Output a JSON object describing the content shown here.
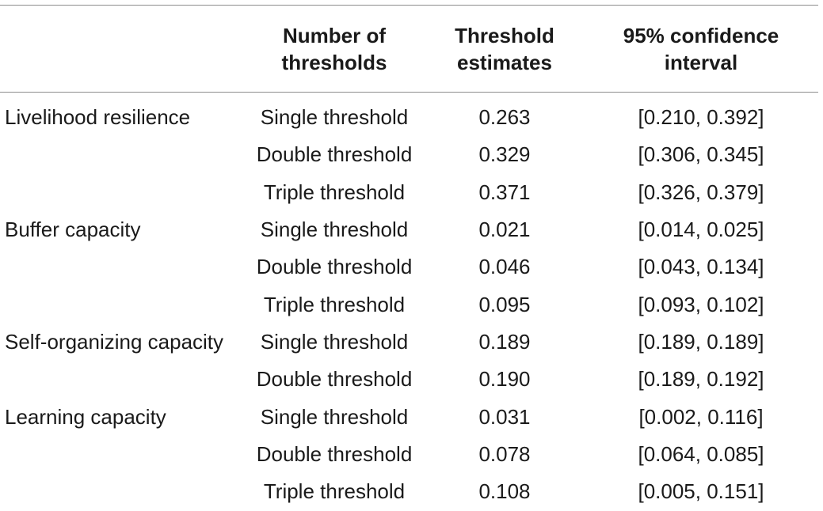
{
  "headers": {
    "col1": "",
    "col2_line1": "Number of",
    "col2_line2": "thresholds",
    "col3_line1": "Threshold",
    "col3_line2": "estimates",
    "col4_line1": "95% confidence",
    "col4_line2": "interval"
  },
  "rows": [
    {
      "group": "Livelihood resilience",
      "type": "Single threshold",
      "estimate": "0.263",
      "ci": "[0.210, 0.392]"
    },
    {
      "group": "",
      "type": "Double threshold",
      "estimate": "0.329",
      "ci": "[0.306, 0.345]"
    },
    {
      "group": "",
      "type": "Triple threshold",
      "estimate": "0.371",
      "ci": "[0.326, 0.379]"
    },
    {
      "group": "Buffer capacity",
      "type": "Single threshold",
      "estimate": "0.021",
      "ci": "[0.014, 0.025]"
    },
    {
      "group": "",
      "type": "Double threshold",
      "estimate": "0.046",
      "ci": "[0.043, 0.134]"
    },
    {
      "group": "",
      "type": "Triple threshold",
      "estimate": "0.095",
      "ci": "[0.093, 0.102]"
    },
    {
      "group": "Self-organizing capacity",
      "type": "Single threshold",
      "estimate": "0.189",
      "ci": "[0.189, 0.189]"
    },
    {
      "group": "",
      "type": "Double threshold",
      "estimate": "0.190",
      "ci": "[0.189, 0.192]"
    },
    {
      "group": "Learning capacity",
      "type": "Single threshold",
      "estimate": "0.031",
      "ci": "[0.002, 0.116]"
    },
    {
      "group": "",
      "type": "Double threshold",
      "estimate": "0.078",
      "ci": "[0.064, 0.085]"
    },
    {
      "group": "",
      "type": "Triple threshold",
      "estimate": "0.108",
      "ci": "[0.005, 0.151]"
    }
  ]
}
